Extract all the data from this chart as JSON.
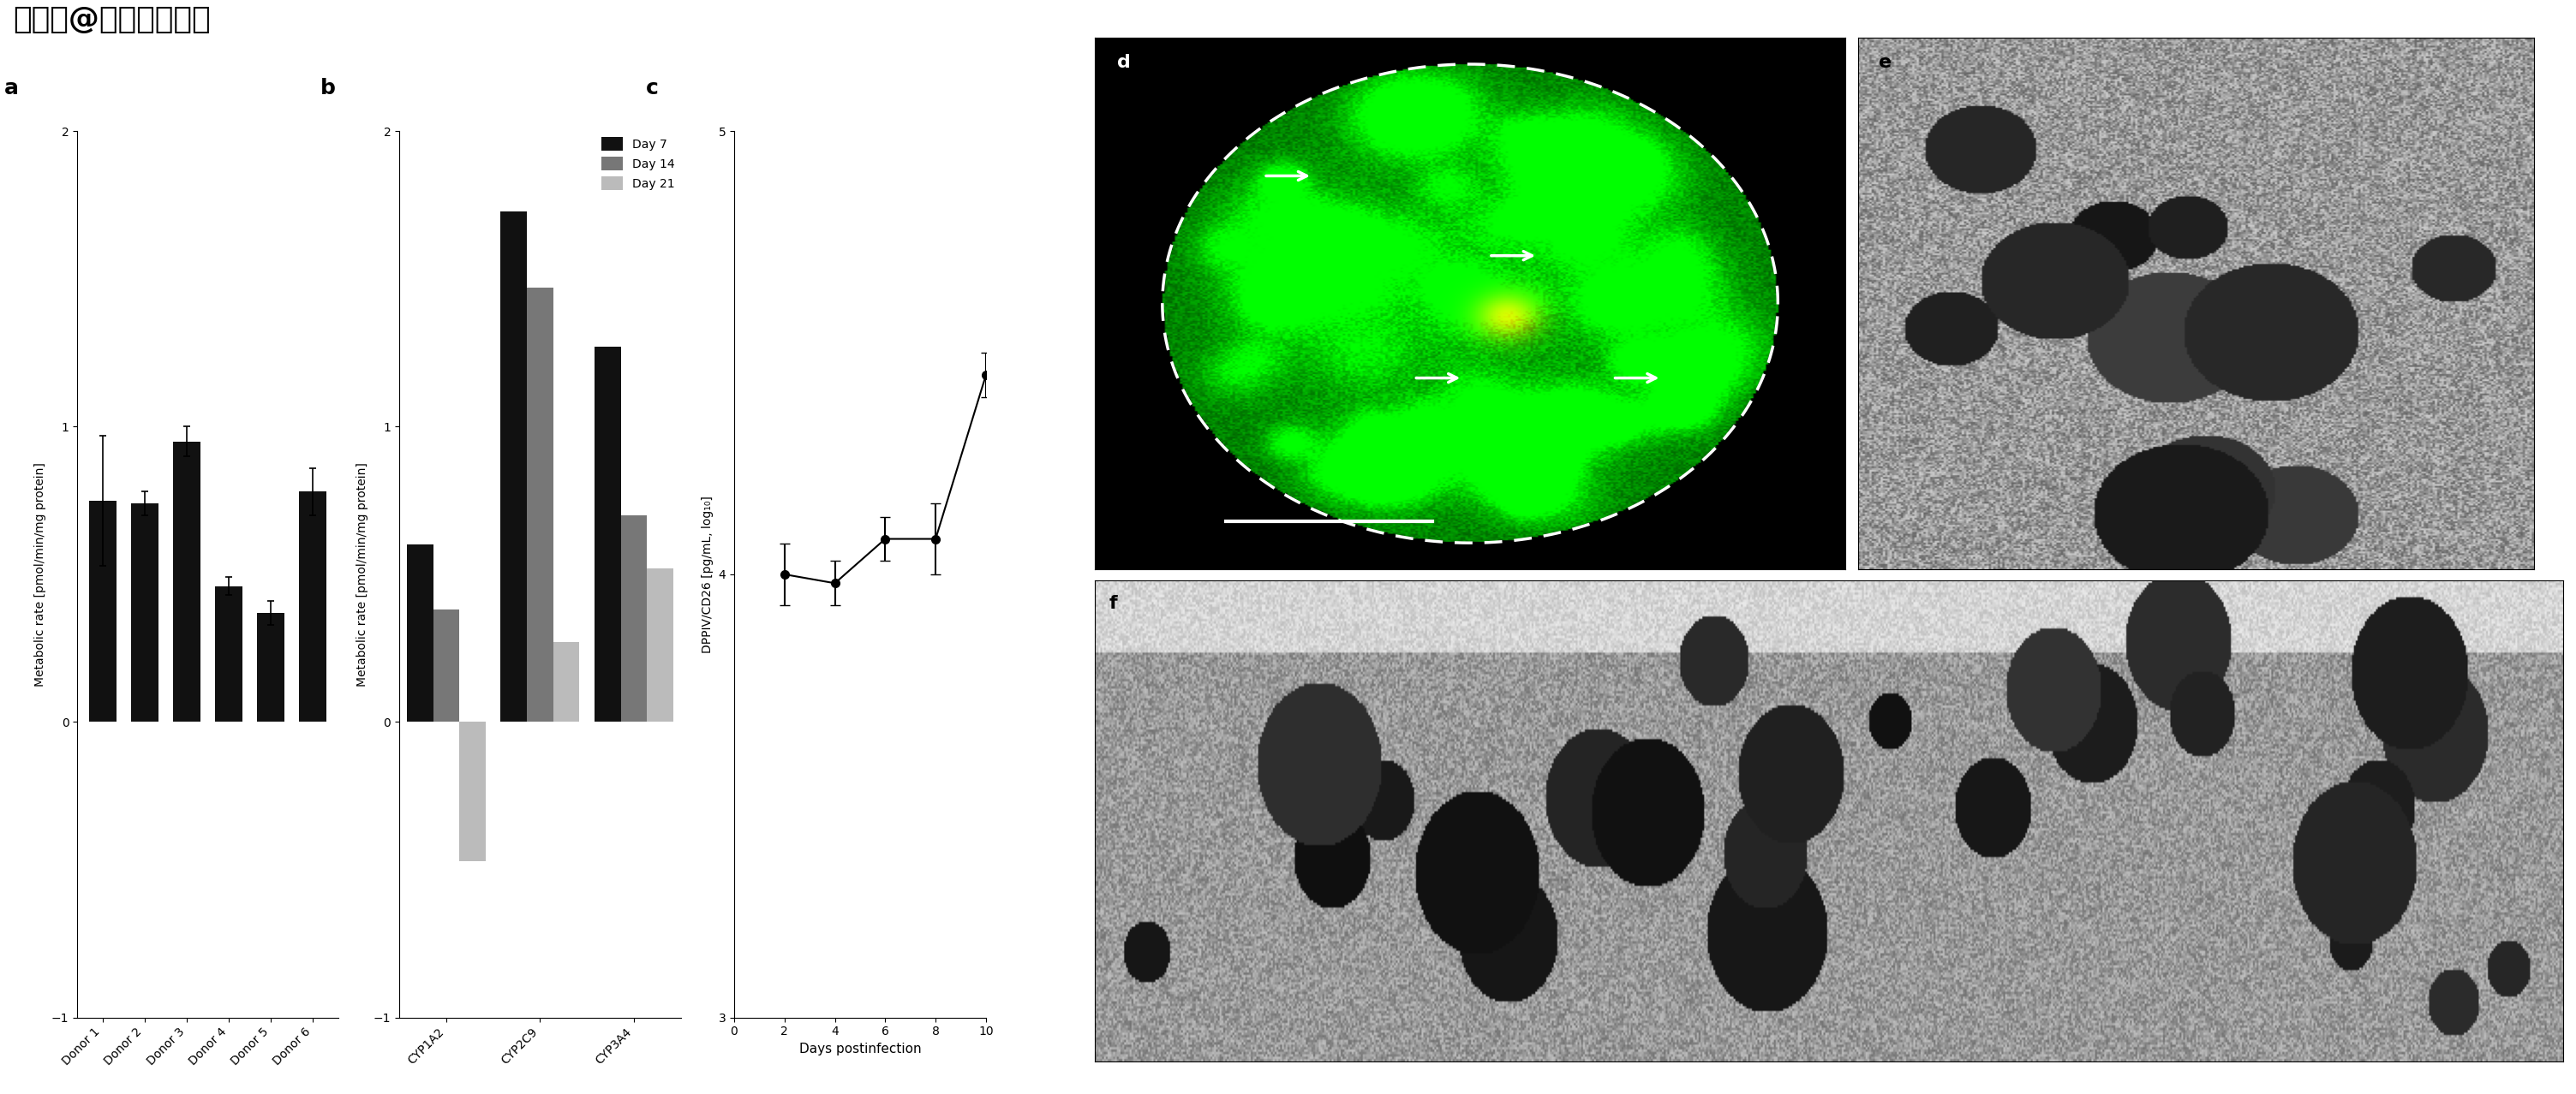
{
  "panel_a": {
    "label": "a",
    "categories": [
      "Donor 1",
      "Donor 2",
      "Donor 3",
      "Donor 4",
      "Donor 5",
      "Donor 6"
    ],
    "values": [
      0.75,
      0.74,
      0.95,
      0.46,
      0.37,
      0.78
    ],
    "errors": [
      0.22,
      0.04,
      0.05,
      0.03,
      0.04,
      0.08
    ],
    "bar_color": "#111111",
    "ylabel": "Metabolic rate [pmol/min/mg protein]",
    "ylim": [
      -1,
      2
    ],
    "yticks": [
      -1,
      0,
      1,
      2
    ]
  },
  "panel_b": {
    "label": "b",
    "categories": [
      "CYP1A2",
      "CYP2C9",
      "CYP3A4"
    ],
    "day7": [
      0.6,
      1.73,
      1.27
    ],
    "day14": [
      0.38,
      1.47,
      0.7
    ],
    "day21": [
      -0.47,
      0.27,
      0.52
    ],
    "colors": [
      "#111111",
      "#777777",
      "#bbbbbb"
    ],
    "legend_labels": [
      "Day 7",
      "Day 14",
      "Day 21"
    ],
    "ylabel": "Metabolic rate [pmol/min/mg protein]",
    "ylim": [
      -1,
      2
    ],
    "yticks": [
      -1,
      0,
      1,
      2
    ]
  },
  "panel_c": {
    "label": "c",
    "x": [
      2,
      4,
      6,
      8,
      10
    ],
    "y": [
      4.0,
      3.98,
      4.08,
      4.08,
      4.45
    ],
    "errors": [
      0.07,
      0.05,
      0.05,
      0.08,
      0.05
    ],
    "xlabel": "Days postinfection",
    "ylabel": "DPPIV/CD26 [pg/mL, log₁₀]",
    "ylim": [
      3,
      5
    ],
    "yticks": [
      3,
      4,
      5
    ],
    "xlim": [
      0,
      10
    ],
    "xticks": [
      0,
      2,
      4,
      6,
      8,
      10
    ],
    "color": "#000000"
  },
  "watermark": "搜狐号@上海曼博生物",
  "image_d_bg": "#0a2200",
  "image_e_bg": "#aaaaaa",
  "image_f_bg": "#999999"
}
